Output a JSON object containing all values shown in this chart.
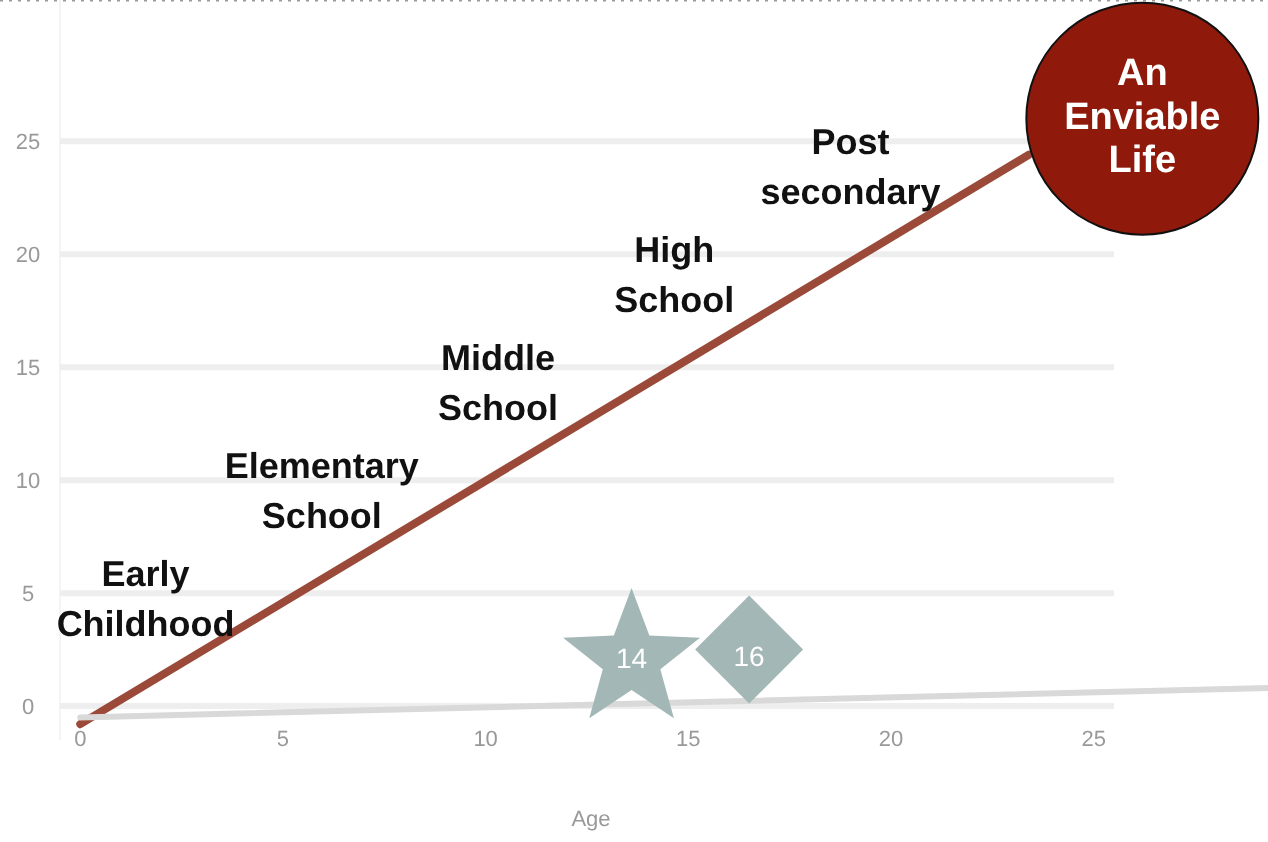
{
  "chart_data": {
    "type": "line",
    "xlabel": "Age",
    "xlim": [
      -0.5,
      29.3
    ],
    "ylim": [
      -1.5,
      31.25
    ],
    "xticks": [
      0,
      5,
      10,
      15,
      20,
      25
    ],
    "yticks": [
      0,
      5,
      10,
      15,
      20,
      25
    ],
    "grid": "y",
    "line_style": "solid",
    "series": [
      {
        "color": "#9b4a3a",
        "x": [
          0,
          23.4
        ],
        "values": [
          -0.8,
          24.4
        ]
      },
      {
        "color": "#d9d9d9",
        "x": [
          0,
          29.3
        ],
        "values": [
          -0.5,
          0.8
        ]
      },
      {
        "type": "scatter",
        "marker": "star",
        "color": "#a3b7b7",
        "x": [
          13.6
        ],
        "values": [
          2.4
        ]
      },
      {
        "type": "scatter",
        "marker": "diamond",
        "color": "#a3b7b7",
        "x": [
          16.5
        ],
        "values": [
          2.5
        ]
      },
      {
        "type": "scatter",
        "marker": "circle",
        "color": "#8f1a0c",
        "x": [
          26.2
        ],
        "values": [
          26
        ]
      }
    ],
    "annotations": [
      "Early Childhood",
      "Elementary School",
      "Middle School",
      "High School",
      "Post secondary",
      {
        "text": "14",
        "x": 13.6,
        "y": 2.4
      },
      {
        "text": "16",
        "x": 16.5,
        "y": 2.5
      },
      {
        "text": "An Enviable Life",
        "x": 26.2,
        "y": 26
      }
    ]
  }
}
